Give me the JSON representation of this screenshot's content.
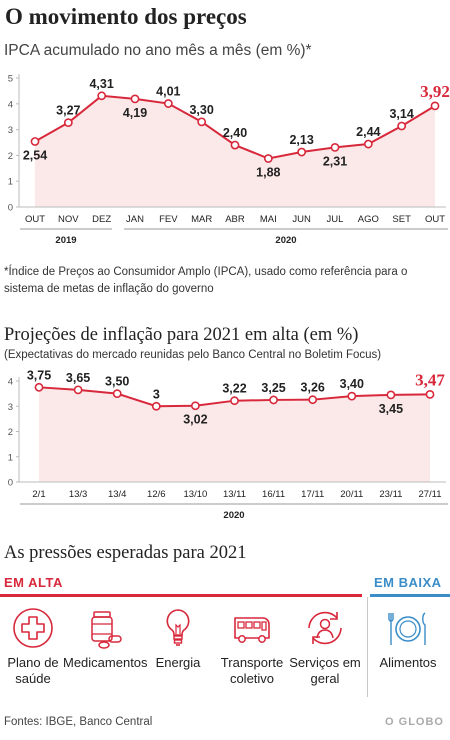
{
  "title": "O movimento dos preços",
  "chart1_subtitle": "IPCA acumulado no ano mês a mês (em %)*",
  "footnote": "*Índice de Preços ao Consumidor Amplo (IPCA), usado como referência para o sistema de metas de inflação do governo",
  "section2_title": "Projeções de inflação para 2021 em alta (em %)",
  "chart2_subtitle": "(Expectativas do mercado reunidas pelo Banco Central no Boletim Focus)",
  "section3_title": "As pressões esperadas para 2021",
  "em_alta_label": "EM ALTA",
  "em_baixa_label": "EM BAIXA",
  "pressures_up": [
    {
      "icon": "health-cross-icon",
      "label": "Plano de saúde"
    },
    {
      "icon": "medicine-icon",
      "label": "Medicamentos"
    },
    {
      "icon": "lightbulb-icon",
      "label": "Energia"
    },
    {
      "icon": "bus-icon",
      "label": "Transporte coletivo"
    },
    {
      "icon": "services-icon",
      "label": "Serviços em geral"
    }
  ],
  "pressures_down": [
    {
      "icon": "plate-cutlery-icon",
      "label": "Alimentos"
    }
  ],
  "source": "Fontes: IBGE, Banco Central",
  "brand": "O GLOBO",
  "colors": {
    "accent": "#d8283b",
    "area": "#fbe8e8",
    "blue": "#3a8dc9"
  },
  "chart_data": [
    {
      "type": "area",
      "title": "IPCA acumulado no ano mês a mês (em %)*",
      "categories": [
        "OUT",
        "NOV",
        "DEZ",
        "JAN",
        "FEV",
        "MAR",
        "ABR",
        "MAI",
        "JUN",
        "JUL",
        "AGO",
        "SET",
        "OUT"
      ],
      "year_labels": [
        "2019",
        "2020"
      ],
      "values": [
        2.54,
        3.27,
        4.31,
        4.19,
        4.01,
        3.3,
        2.4,
        1.88,
        2.13,
        2.31,
        2.44,
        3.14,
        3.92
      ],
      "labels": [
        "2,54",
        "3,27",
        "4,31",
        "4,19",
        "4,01",
        "3,30",
        "2,40",
        "1,88",
        "2,13",
        "2,31",
        "2,44",
        "3,14",
        "3,92"
      ],
      "yticks": [
        "0",
        "1",
        "2",
        "3",
        "4",
        "5"
      ],
      "ylim": [
        0,
        5
      ],
      "grid": false
    },
    {
      "type": "area",
      "title": "Projeções de inflação para 2021 em alta (em %)",
      "categories": [
        "2/1",
        "13/3",
        "13/4",
        "12/6",
        "13/10",
        "13/11",
        "16/11",
        "17/11",
        "20/11",
        "23/11",
        "27/11"
      ],
      "year_labels": [
        "2020"
      ],
      "values": [
        3.75,
        3.65,
        3.5,
        3.0,
        3.02,
        3.22,
        3.25,
        3.26,
        3.4,
        3.45,
        3.47
      ],
      "labels": [
        "3,75",
        "3,65",
        "3,50",
        "3",
        "3,02",
        "3,22",
        "3,25",
        "3,26",
        "3,40",
        "3,45",
        "3,47"
      ],
      "yticks": [
        "0",
        "1",
        "2",
        "3",
        "4"
      ],
      "ylim": [
        0,
        4
      ],
      "grid": false
    }
  ]
}
